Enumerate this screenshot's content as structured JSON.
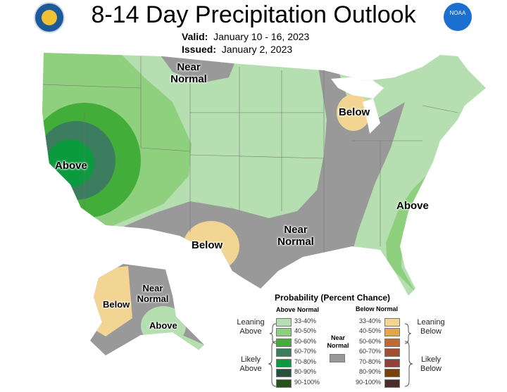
{
  "title": "8-14 Day Precipitation Outlook",
  "valid_label": "Valid:",
  "valid_value": "January 10 - 16, 2023",
  "issued_label": "Issued:",
  "issued_value": "January 2, 2023",
  "logos": {
    "left": "Department of Commerce seal",
    "right": "NOAA"
  },
  "map_labels": {
    "near_normal_north": "Near Normal",
    "above_west": "Above",
    "below_michigan": "Below",
    "below_texas": "Below",
    "near_normal_central": "Near Normal",
    "above_southeast": "Above",
    "alaska_below": "Below",
    "alaska_near_normal": "Near Normal",
    "alaska_above": "Above"
  },
  "legend": {
    "title": "Probability (Percent Chance)",
    "above_header": "Above Normal",
    "below_header": "Below Normal",
    "leaning_above": "Leaning Above",
    "likely_above": "Likely Above",
    "leaning_below": "Leaning Below",
    "likely_below": "Likely Below",
    "near_normal": "Near Normal",
    "near_normal_color": "#999999",
    "above": [
      {
        "range": "33-40%",
        "color": "#b5dfb0"
      },
      {
        "range": "40-50%",
        "color": "#8fd07f"
      },
      {
        "range": "50-60%",
        "color": "#43ad3a"
      },
      {
        "range": "60-70%",
        "color": "#3b7d5e"
      },
      {
        "range": "70-80%",
        "color": "#0b9a3e"
      },
      {
        "range": "80-90%",
        "color": "#27513a"
      },
      {
        "range": "90-100%",
        "color": "#254f1c"
      }
    ],
    "below": [
      {
        "range": "33-40%",
        "color": "#f3d593"
      },
      {
        "range": "40-50%",
        "color": "#e2a64b"
      },
      {
        "range": "50-60%",
        "color": "#c06a31"
      },
      {
        "range": "60-70%",
        "color": "#a0502f"
      },
      {
        "range": "70-80%",
        "color": "#92403a"
      },
      {
        "range": "80-90%",
        "color": "#7b3f0a"
      },
      {
        "range": "90-100%",
        "color": "#4b2c2c"
      }
    ]
  }
}
